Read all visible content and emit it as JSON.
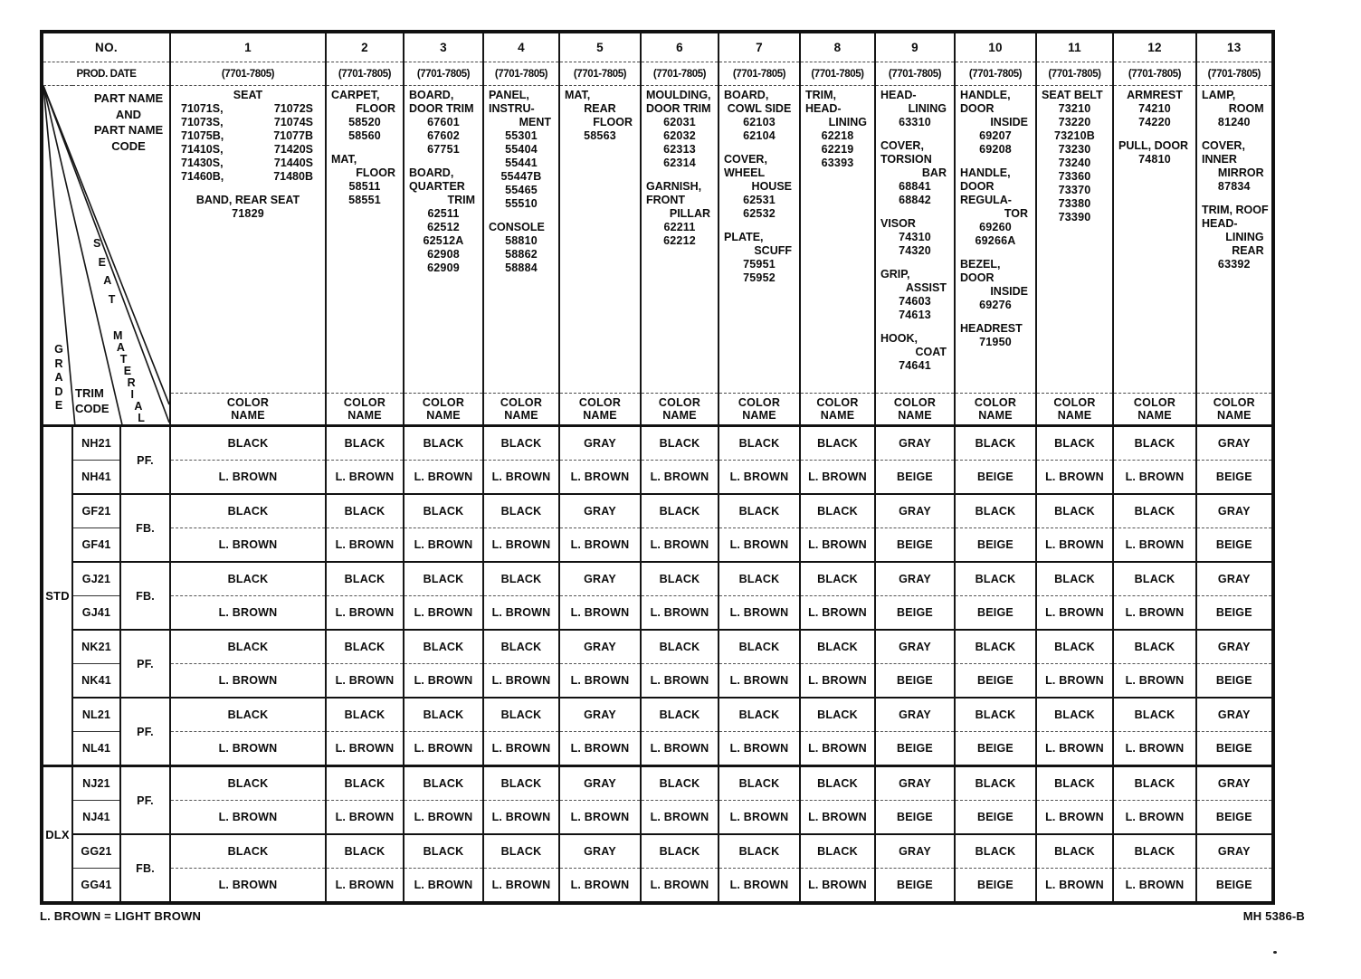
{
  "header": {
    "no_label": "NO.",
    "prod_date_label": "PROD. DATE",
    "part_name_lines": [
      "PART NAME",
      "AND",
      "PART NAME",
      "CODE"
    ],
    "grade_label": "GRADE",
    "trim_code_label": "TRIM CODE",
    "seat_material_label": "SEAT MATERIAL",
    "color_name_lines": [
      "COLOR",
      "NAME"
    ]
  },
  "columns": [
    {
      "no": "1",
      "prod_date": "(7701-7805)",
      "lines": [
        {
          "t": "SEAT",
          "a": "c"
        },
        {
          "l": "71071S,",
          "r": "71072S",
          "a": "p"
        },
        {
          "l": "71073S,",
          "r": "71074S",
          "a": "p"
        },
        {
          "l": "71075B,",
          "r": "71077B",
          "a": "p"
        },
        {
          "l": "71410S,",
          "r": "71420S",
          "a": "p"
        },
        {
          "l": "71430S,",
          "r": "71440S",
          "a": "p"
        },
        {
          "l": "71460B,",
          "r": "71480B",
          "a": "p"
        },
        {
          "a": "sp"
        },
        {
          "t": "BAND, REAR SEAT",
          "a": "c"
        },
        {
          "t": "71829",
          "a": "n"
        }
      ]
    },
    {
      "no": "2",
      "prod_date": "(7701-7805)",
      "lines": [
        {
          "t": "CARPET,",
          "a": "l"
        },
        {
          "t": "FLOOR",
          "a": "r"
        },
        {
          "t": "58520",
          "a": "n"
        },
        {
          "t": "58560",
          "a": "n"
        },
        {
          "a": "sp"
        },
        {
          "t": "MAT,",
          "a": "l"
        },
        {
          "t": "FLOOR",
          "a": "r"
        },
        {
          "t": "58511",
          "a": "n"
        },
        {
          "t": "58551",
          "a": "n"
        }
      ]
    },
    {
      "no": "3",
      "prod_date": "(7701-7805)",
      "lines": [
        {
          "t": "BOARD,",
          "a": "l"
        },
        {
          "t": "DOOR TRIM",
          "a": "l"
        },
        {
          "t": "67601",
          "a": "n"
        },
        {
          "t": "67602",
          "a": "n"
        },
        {
          "t": "67751",
          "a": "n"
        },
        {
          "a": "sp"
        },
        {
          "t": "BOARD,",
          "a": "l"
        },
        {
          "t": "QUARTER",
          "a": "l"
        },
        {
          "t": "TRIM",
          "a": "r"
        },
        {
          "t": "62511",
          "a": "n"
        },
        {
          "t": "62512",
          "a": "n"
        },
        {
          "t": "62512A",
          "a": "n"
        },
        {
          "t": "62908",
          "a": "n"
        },
        {
          "t": "62909",
          "a": "n"
        }
      ]
    },
    {
      "no": "4",
      "prod_date": "(7701-7805)",
      "lines": [
        {
          "t": "PANEL,",
          "a": "l"
        },
        {
          "t": "INSTRU-",
          "a": "l"
        },
        {
          "t": "MENT",
          "a": "r"
        },
        {
          "t": "55301",
          "a": "n"
        },
        {
          "t": "55404",
          "a": "n"
        },
        {
          "t": "55441",
          "a": "n"
        },
        {
          "t": "55447B",
          "a": "n"
        },
        {
          "t": "55465",
          "a": "n"
        },
        {
          "t": "55510",
          "a": "n"
        },
        {
          "a": "sp"
        },
        {
          "t": "CONSOLE",
          "a": "l"
        },
        {
          "t": "58810",
          "a": "n"
        },
        {
          "t": "58862",
          "a": "n"
        },
        {
          "t": "58884",
          "a": "n"
        }
      ]
    },
    {
      "no": "5",
      "prod_date": "(7701-7805)",
      "lines": [
        {
          "t": "MAT,",
          "a": "l"
        },
        {
          "t": "REAR",
          "a": "c"
        },
        {
          "t": "FLOOR",
          "a": "r"
        },
        {
          "t": "58563",
          "a": "n"
        }
      ]
    },
    {
      "no": "6",
      "prod_date": "(7701-7805)",
      "lines": [
        {
          "t": "MOULDING,",
          "a": "l"
        },
        {
          "t": "DOOR TRIM",
          "a": "l"
        },
        {
          "t": "62031",
          "a": "n"
        },
        {
          "t": "62032",
          "a": "n"
        },
        {
          "t": "62313",
          "a": "n"
        },
        {
          "t": "62314",
          "a": "n"
        },
        {
          "a": "sp"
        },
        {
          "t": "GARNISH,",
          "a": "l"
        },
        {
          "t": "FRONT",
          "a": "l"
        },
        {
          "t": "PILLAR",
          "a": "r"
        },
        {
          "t": "62211",
          "a": "n"
        },
        {
          "t": "62212",
          "a": "n"
        }
      ]
    },
    {
      "no": "7",
      "prod_date": "(7701-7805)",
      "lines": [
        {
          "t": "BOARD,",
          "a": "l"
        },
        {
          "t": "COWL SIDE",
          "a": "c"
        },
        {
          "t": "62103",
          "a": "n"
        },
        {
          "t": "62104",
          "a": "n"
        },
        {
          "a": "sp"
        },
        {
          "t": "COVER,",
          "a": "l"
        },
        {
          "t": "WHEEL",
          "a": "l"
        },
        {
          "t": "HOUSE",
          "a": "r"
        },
        {
          "t": "62531",
          "a": "n"
        },
        {
          "t": "62532",
          "a": "n"
        },
        {
          "a": "sp"
        },
        {
          "t": "PLATE,",
          "a": "l"
        },
        {
          "t": "SCUFF",
          "a": "r"
        },
        {
          "t": "75951",
          "a": "n"
        },
        {
          "t": "75952",
          "a": "n"
        }
      ]
    },
    {
      "no": "8",
      "prod_date": "(7701-7805)",
      "lines": [
        {
          "t": "TRIM,",
          "a": "l"
        },
        {
          "t": "HEAD-",
          "a": "l"
        },
        {
          "t": "LINING",
          "a": "r"
        },
        {
          "t": "62218",
          "a": "n"
        },
        {
          "t": "62219",
          "a": "n"
        },
        {
          "t": "63393",
          "a": "n"
        }
      ]
    },
    {
      "no": "9",
      "prod_date": "(7701-7805)",
      "lines": [
        {
          "t": "HEAD-",
          "a": "l"
        },
        {
          "t": "LINING",
          "a": "r"
        },
        {
          "t": "63310",
          "a": "n"
        },
        {
          "a": "sp"
        },
        {
          "t": "COVER,",
          "a": "l"
        },
        {
          "t": "TORSION",
          "a": "l"
        },
        {
          "t": "BAR",
          "a": "r"
        },
        {
          "t": "68841",
          "a": "n"
        },
        {
          "t": "68842",
          "a": "n"
        },
        {
          "a": "sp"
        },
        {
          "t": "VISOR",
          "a": "l"
        },
        {
          "t": "74310",
          "a": "n"
        },
        {
          "t": "74320",
          "a": "n"
        },
        {
          "a": "sp"
        },
        {
          "t": "GRIP,",
          "a": "l"
        },
        {
          "t": "ASSIST",
          "a": "r"
        },
        {
          "t": "74603",
          "a": "n"
        },
        {
          "t": "74613",
          "a": "n"
        },
        {
          "a": "sp"
        },
        {
          "t": "HOOK,",
          "a": "l"
        },
        {
          "t": "COAT",
          "a": "r"
        },
        {
          "t": "74641",
          "a": "n"
        }
      ]
    },
    {
      "no": "10",
      "prod_date": "(7701-7805)",
      "lines": [
        {
          "t": "HANDLE,",
          "a": "l"
        },
        {
          "t": "DOOR",
          "a": "l"
        },
        {
          "t": "INSIDE",
          "a": "r"
        },
        {
          "t": "69207",
          "a": "n"
        },
        {
          "t": "69208",
          "a": "n"
        },
        {
          "a": "sp"
        },
        {
          "t": "HANDLE,",
          "a": "l"
        },
        {
          "t": "DOOR",
          "a": "l"
        },
        {
          "t": "REGULA-",
          "a": "l"
        },
        {
          "t": "TOR",
          "a": "r"
        },
        {
          "t": "69260",
          "a": "n"
        },
        {
          "t": "69266A",
          "a": "n"
        },
        {
          "a": "sp"
        },
        {
          "t": "BEZEL,",
          "a": "l"
        },
        {
          "t": "DOOR",
          "a": "l"
        },
        {
          "t": "INSIDE",
          "a": "r"
        },
        {
          "t": "69276",
          "a": "n"
        },
        {
          "a": "sp"
        },
        {
          "t": "HEADREST",
          "a": "l"
        },
        {
          "t": "71950",
          "a": "n"
        }
      ]
    },
    {
      "no": "11",
      "prod_date": "(7701-7805)",
      "lines": [
        {
          "t": "SEAT BELT",
          "a": "l"
        },
        {
          "t": "73210",
          "a": "n"
        },
        {
          "t": "73220",
          "a": "n"
        },
        {
          "t": "73210B",
          "a": "n"
        },
        {
          "t": "73230",
          "a": "n"
        },
        {
          "t": "73240",
          "a": "n"
        },
        {
          "t": "73360",
          "a": "n"
        },
        {
          "t": "73370",
          "a": "n"
        },
        {
          "t": "73380",
          "a": "n"
        },
        {
          "t": "73390",
          "a": "n"
        }
      ]
    },
    {
      "no": "12",
      "prod_date": "(7701-7805)",
      "lines": [
        {
          "t": "ARMREST",
          "a": "c"
        },
        {
          "t": "74210",
          "a": "n"
        },
        {
          "t": "74220",
          "a": "n"
        },
        {
          "a": "sp"
        },
        {
          "t": "PULL, DOOR",
          "a": "l"
        },
        {
          "t": "74810",
          "a": "n"
        }
      ]
    },
    {
      "no": "13",
      "prod_date": "(7701-7805)",
      "lines": [
        {
          "t": "LAMP,",
          "a": "l"
        },
        {
          "t": "ROOM",
          "a": "r"
        },
        {
          "t": "81240",
          "a": "n"
        },
        {
          "a": "sp"
        },
        {
          "t": "COVER,",
          "a": "l"
        },
        {
          "t": "INNER",
          "a": "l"
        },
        {
          "t": "MIRROR",
          "a": "r"
        },
        {
          "t": "87834",
          "a": "n"
        },
        {
          "a": "sp"
        },
        {
          "t": "TRIM, ROOF",
          "a": "l"
        },
        {
          "t": "HEAD-",
          "a": "l"
        },
        {
          "t": "LINING",
          "a": "r"
        },
        {
          "t": "REAR",
          "a": "r"
        },
        {
          "t": "63392",
          "a": "n"
        }
      ]
    }
  ],
  "body": {
    "groups": [
      {
        "grade": "STD",
        "pairs": [
          {
            "codes": [
              "NH21",
              "NH41"
            ],
            "material": "PF."
          },
          {
            "codes": [
              "GF21",
              "GF41"
            ],
            "material": "FB."
          },
          {
            "codes": [
              "GJ21",
              "GJ41"
            ],
            "material": "FB."
          },
          {
            "codes": [
              "NK21",
              "NK41"
            ],
            "material": "PF."
          },
          {
            "codes": [
              "NL21",
              "NL41"
            ],
            "material": "PF."
          }
        ]
      },
      {
        "grade": "DLX",
        "pairs": [
          {
            "codes": [
              "NJ21",
              "NJ41"
            ],
            "material": "PF."
          },
          {
            "codes": [
              "GG21",
              "GG41"
            ],
            "material": "FB."
          }
        ]
      }
    ],
    "color_rows": {
      "dark": [
        "BLACK",
        "BLACK",
        "BLACK",
        "BLACK",
        "GRAY",
        "BLACK",
        "BLACK",
        "BLACK",
        "GRAY",
        "BLACK",
        "BLACK",
        "BLACK",
        "GRAY"
      ],
      "light": [
        "L. BROWN",
        "L. BROWN",
        "L. BROWN",
        "L. BROWN",
        "L. BROWN",
        "L. BROWN",
        "L. BROWN",
        "L. BROWN",
        "BEIGE",
        "BEIGE",
        "L. BROWN",
        "L. BROWN",
        "BEIGE"
      ]
    }
  },
  "footer": {
    "left_note": "L. BROWN = LIGHT BROWN",
    "doc_number": "MH 5386-B"
  }
}
